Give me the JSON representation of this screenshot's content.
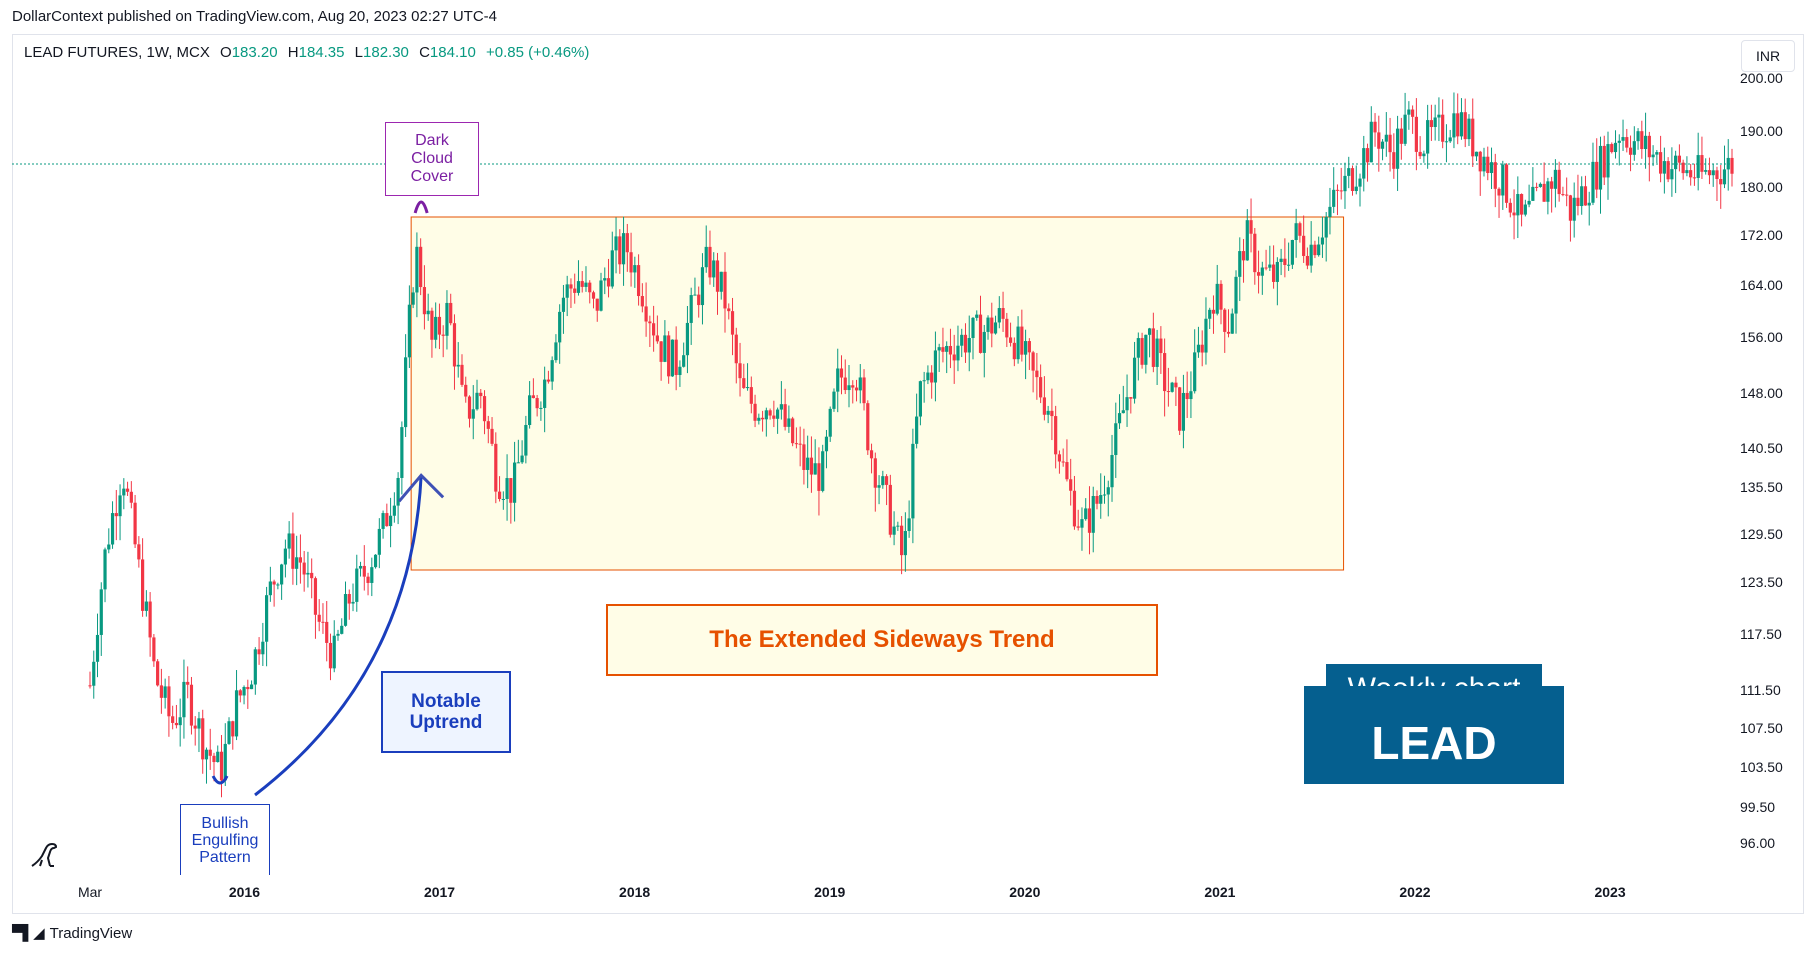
{
  "header": {
    "published_text": "DollarContext published on TradingView.com, Aug 20, 2023 02:27 UTC-4"
  },
  "legend": {
    "symbol_line": "LEAD FUTURES, 1W, MCX",
    "open_label": "O",
    "open_value": "183.20",
    "high_label": "H",
    "high_value": "184.35",
    "low_label": "L",
    "low_value": "182.30",
    "close_label": "C",
    "close_value": "184.10",
    "change": "+0.85 (+0.46%)"
  },
  "currency": "INR",
  "footer": {
    "brand": "TradingView"
  },
  "annotations": {
    "dark_cloud": [
      "Dark",
      "Cloud",
      "Cover"
    ],
    "bullish_engulfing": [
      "Bullish",
      "Engulfing",
      "Pattern"
    ],
    "notable_uptrend": [
      "Notable",
      "Uptrend"
    ],
    "sideways": "The Extended Sideways Trend",
    "weekly_chart": "Weekly chart",
    "lead": "LEAD"
  },
  "colors": {
    "up": "#089981",
    "down": "#f23645",
    "purple": "#7b1fa2",
    "blue": "#1a3ebd",
    "orange": "#e65100",
    "box_fill": "#fffde7",
    "banner": "#055f8f"
  },
  "chart_data": {
    "type": "candlestick",
    "symbol": "LEAD FUTURES",
    "interval": "1W",
    "x_ticks": [
      "Mar",
      "2016",
      "2017",
      "2018",
      "2019",
      "2020",
      "2021",
      "2022",
      "2023"
    ],
    "y_ticks": [
      96.0,
      99.5,
      103.5,
      107.5,
      111.5,
      117.5,
      123.5,
      129.5,
      135.5,
      140.5,
      148.0,
      156.0,
      164.0,
      172.0,
      180.0,
      190.0,
      200.0
    ],
    "current_price": 184.1,
    "price_path": [
      [
        "Mar",
        112
      ],
      [
        "Apr 2015",
        128
      ],
      [
        "May 2015",
        138
      ],
      [
        "Jun 2015",
        125
      ],
      [
        "Jul 2015",
        113
      ],
      [
        "Aug 2015",
        108
      ],
      [
        "Sep 2015",
        111
      ],
      [
        "Oct 2015",
        106
      ],
      [
        "Nov 2015",
        103
      ],
      [
        "Dec 2015",
        110
      ],
      [
        "Jan 2016",
        114
      ],
      [
        "Feb 2016",
        122
      ],
      [
        "Mar 2016",
        128
      ],
      [
        "Apr 2016",
        126
      ],
      [
        "May 2016",
        119
      ],
      [
        "Jun 2016",
        115
      ],
      [
        "Jul 2016",
        122
      ],
      [
        "Aug 2016",
        125
      ],
      [
        "Sep 2016",
        130
      ],
      [
        "Oct 2016",
        138
      ],
      [
        "Nov 2016",
        170
      ],
      [
        "Dec 2016",
        155
      ],
      [
        "Jan 2017",
        160
      ],
      [
        "Feb 2017",
        145
      ],
      [
        "Mar 2017",
        148
      ],
      [
        "Apr 2017",
        137
      ],
      [
        "May 2017",
        135
      ],
      [
        "Jun 2017",
        145
      ],
      [
        "Jul 2017",
        150
      ],
      [
        "Aug 2017",
        162
      ],
      [
        "Sep 2017",
        165
      ],
      [
        "Oct 2017",
        160
      ],
      [
        "Nov 2017",
        168
      ],
      [
        "Dec 2017",
        170
      ],
      [
        "Jan 2018",
        163
      ],
      [
        "Feb 2018",
        155
      ],
      [
        "Mar 2018",
        152
      ],
      [
        "Apr 2018",
        160
      ],
      [
        "May 2018",
        168
      ],
      [
        "Jun 2018",
        162
      ],
      [
        "Jul 2018",
        148
      ],
      [
        "Aug 2018",
        146
      ],
      [
        "Sep 2018",
        147
      ],
      [
        "Oct 2018",
        142
      ],
      [
        "Nov 2018",
        138
      ],
      [
        "Dec 2018",
        137
      ],
      [
        "Jan 2019",
        150
      ],
      [
        "Feb 2019",
        152
      ],
      [
        "Mar 2019",
        140
      ],
      [
        "Apr 2019",
        133
      ],
      [
        "May 2019",
        126
      ],
      [
        "Jun 2019",
        148
      ],
      [
        "Jul 2019",
        153
      ],
      [
        "Aug 2019",
        155
      ],
      [
        "Sep 2019",
        156
      ],
      [
        "Oct 2019",
        157
      ],
      [
        "Nov 2019",
        159
      ],
      [
        "Dec 2019",
        155
      ],
      [
        "Jan 2020",
        150
      ],
      [
        "Feb 2020",
        146
      ],
      [
        "Mar 2020",
        136
      ],
      [
        "Apr 2020",
        130
      ],
      [
        "May 2020",
        134
      ],
      [
        "Jun 2020",
        141
      ],
      [
        "Jul 2020",
        150
      ],
      [
        "Aug 2020",
        157
      ],
      [
        "Sep 2020",
        150
      ],
      [
        "Oct 2020",
        145
      ],
      [
        "Nov 2020",
        152
      ],
      [
        "Dec 2020",
        163
      ],
      [
        "Jan 2021",
        158
      ],
      [
        "Feb 2021",
        172
      ],
      [
        "Mar 2021",
        166
      ],
      [
        "Apr 2021",
        165
      ],
      [
        "May 2021",
        172
      ],
      [
        "Jun 2021",
        170
      ],
      [
        "Jul 2021",
        175
      ],
      [
        "Aug 2021",
        180
      ],
      [
        "Sep 2021",
        184
      ],
      [
        "Oct 2021",
        190
      ],
      [
        "Nov 2021",
        186
      ],
      [
        "Dec 2021",
        192
      ],
      [
        "Jan 2022",
        188
      ],
      [
        "Feb 2022",
        190
      ],
      [
        "Mar 2022",
        193
      ],
      [
        "Apr 2022",
        188
      ],
      [
        "May 2022",
        184
      ],
      [
        "Jun 2022",
        180
      ],
      [
        "Jul 2022",
        174
      ],
      [
        "Aug 2022",
        178
      ],
      [
        "Sep 2022",
        182
      ],
      [
        "Oct 2022",
        176
      ],
      [
        "Nov 2022",
        180
      ],
      [
        "Dec 2022",
        185
      ],
      [
        "Jan 2023",
        190
      ],
      [
        "Feb 2023",
        188
      ],
      [
        "Mar 2023",
        186
      ],
      [
        "Apr 2023",
        184
      ],
      [
        "May 2023",
        183
      ],
      [
        "Jun 2023",
        182
      ],
      [
        "Jul 2023",
        183
      ],
      [
        "Aug 2023",
        184.1
      ]
    ],
    "sideways_range": {
      "from": "Nov 2016",
      "to": "Jul 2021",
      "low": 125,
      "high": 175
    },
    "grid": false,
    "legend_position": "top-left",
    "y_axis_position": "right"
  }
}
